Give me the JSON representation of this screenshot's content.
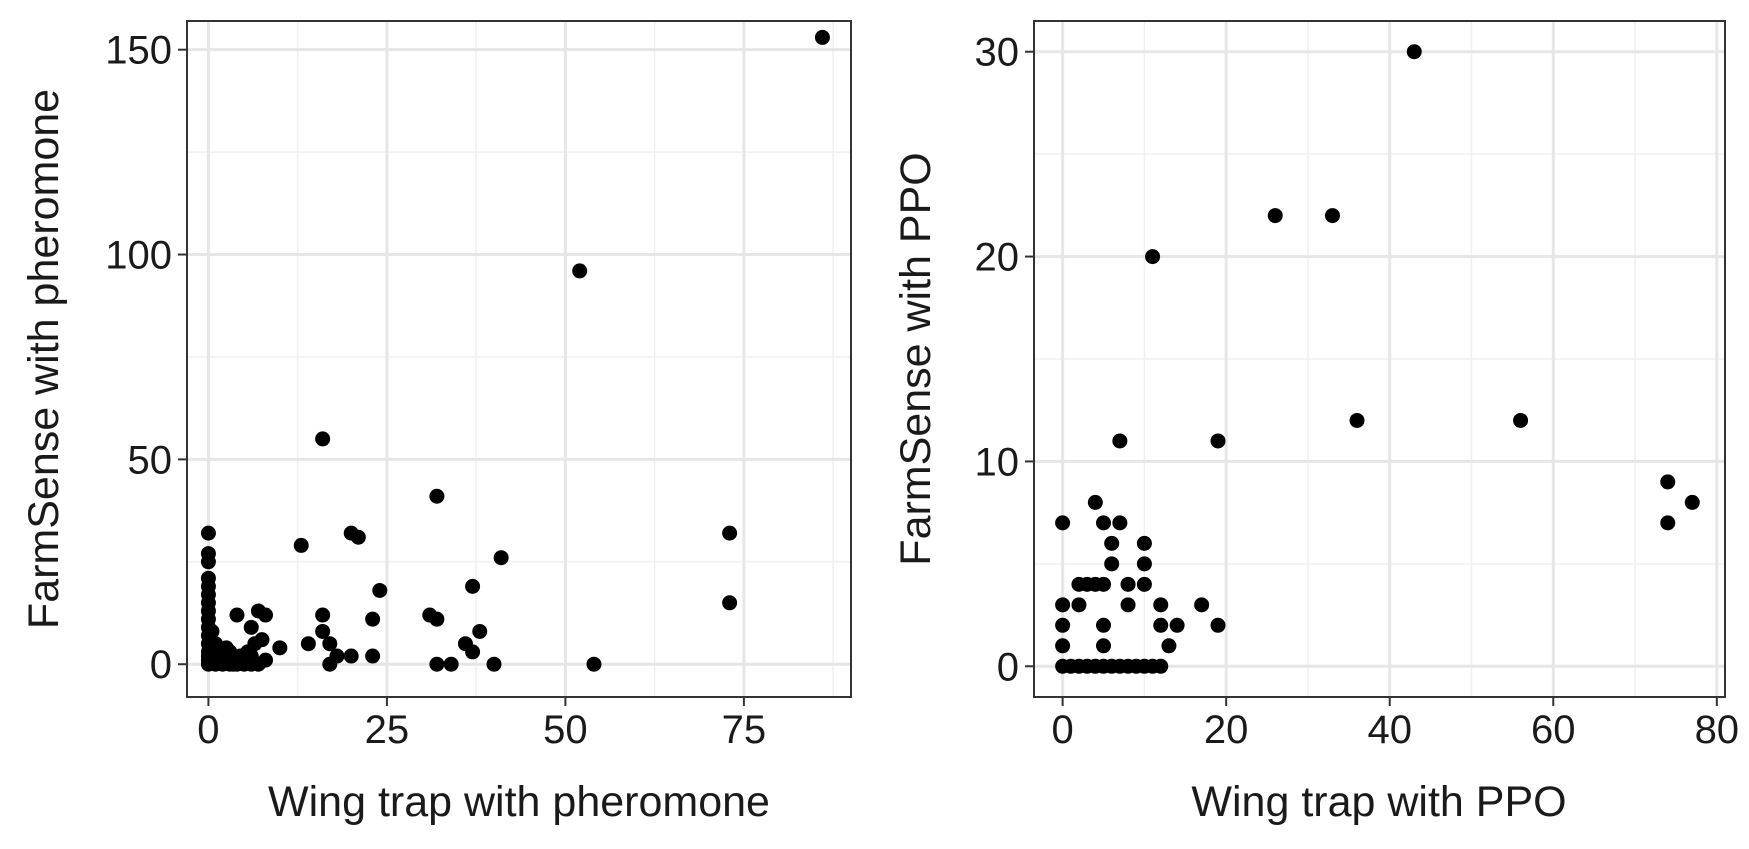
{
  "chart_data": [
    {
      "type": "scatter",
      "xlabel": "Wing trap with pheromone",
      "ylabel": "FarmSense with pheromone",
      "xlim": [
        -3,
        90
      ],
      "ylim": [
        -8,
        157
      ],
      "x_ticks": [
        "0",
        "25",
        "50",
        "75"
      ],
      "y_ticks": [
        "0",
        "50",
        "100",
        "150"
      ],
      "grid": true,
      "legend": "none",
      "point_color": "#000000",
      "points": [
        {
          "x": 0,
          "y": 0
        },
        {
          "x": 0,
          "y": 1
        },
        {
          "x": 0,
          "y": 2
        },
        {
          "x": 0,
          "y": 3
        },
        {
          "x": 0,
          "y": 5
        },
        {
          "x": 0,
          "y": 7
        },
        {
          "x": 0,
          "y": 9
        },
        {
          "x": 0,
          "y": 11
        },
        {
          "x": 0,
          "y": 13
        },
        {
          "x": 0,
          "y": 15
        },
        {
          "x": 0,
          "y": 17
        },
        {
          "x": 0,
          "y": 19
        },
        {
          "x": 0,
          "y": 21
        },
        {
          "x": 0,
          "y": 25
        },
        {
          "x": 0,
          "y": 27
        },
        {
          "x": 0,
          "y": 32
        },
        {
          "x": 0.5,
          "y": 4
        },
        {
          "x": 0.5,
          "y": 8
        },
        {
          "x": 1,
          "y": 0
        },
        {
          "x": 1,
          "y": 2
        },
        {
          "x": 1,
          "y": 5
        },
        {
          "x": 1.5,
          "y": 1
        },
        {
          "x": 1.5,
          "y": 3
        },
        {
          "x": 2,
          "y": 0
        },
        {
          "x": 2,
          "y": 2
        },
        {
          "x": 2.5,
          "y": 4
        },
        {
          "x": 3,
          "y": 0
        },
        {
          "x": 3,
          "y": 1
        },
        {
          "x": 3,
          "y": 3
        },
        {
          "x": 3.5,
          "y": 0
        },
        {
          "x": 4,
          "y": 0
        },
        {
          "x": 4,
          "y": 12
        },
        {
          "x": 4.5,
          "y": 2
        },
        {
          "x": 5,
          "y": 0
        },
        {
          "x": 5,
          "y": 1
        },
        {
          "x": 5.5,
          "y": 3
        },
        {
          "x": 6,
          "y": 0
        },
        {
          "x": 6,
          "y": 2
        },
        {
          "x": 6,
          "y": 9
        },
        {
          "x": 6.5,
          "y": 5
        },
        {
          "x": 7,
          "y": 0
        },
        {
          "x": 7,
          "y": 13
        },
        {
          "x": 7.5,
          "y": 6
        },
        {
          "x": 8,
          "y": 1
        },
        {
          "x": 8,
          "y": 12
        },
        {
          "x": 10,
          "y": 4
        },
        {
          "x": 13,
          "y": 29
        },
        {
          "x": 14,
          "y": 5
        },
        {
          "x": 16,
          "y": 55
        },
        {
          "x": 16,
          "y": 8
        },
        {
          "x": 16,
          "y": 12
        },
        {
          "x": 17,
          "y": 5
        },
        {
          "x": 17,
          "y": 0
        },
        {
          "x": 18,
          "y": 2
        },
        {
          "x": 20,
          "y": 32
        },
        {
          "x": 20,
          "y": 2
        },
        {
          "x": 21,
          "y": 31
        },
        {
          "x": 23,
          "y": 11
        },
        {
          "x": 23,
          "y": 2
        },
        {
          "x": 24,
          "y": 18
        },
        {
          "x": 31,
          "y": 12
        },
        {
          "x": 32,
          "y": 11
        },
        {
          "x": 32,
          "y": 41
        },
        {
          "x": 32,
          "y": 0
        },
        {
          "x": 34,
          "y": 0
        },
        {
          "x": 36,
          "y": 5
        },
        {
          "x": 37,
          "y": 3
        },
        {
          "x": 37,
          "y": 19
        },
        {
          "x": 38,
          "y": 8
        },
        {
          "x": 40,
          "y": 0
        },
        {
          "x": 41,
          "y": 26
        },
        {
          "x": 52,
          "y": 96
        },
        {
          "x": 54,
          "y": 0
        },
        {
          "x": 73,
          "y": 32
        },
        {
          "x": 73,
          "y": 15
        },
        {
          "x": 86,
          "y": 153
        }
      ]
    },
    {
      "type": "scatter",
      "xlabel": "Wing trap with PPO",
      "ylabel": "FarmSense with PPO",
      "xlim": [
        -3.5,
        81
      ],
      "ylim": [
        -1.5,
        31.5
      ],
      "x_ticks": [
        "0",
        "20",
        "40",
        "60",
        "80"
      ],
      "y_ticks": [
        "0",
        "10",
        "20",
        "30"
      ],
      "grid": true,
      "legend": "none",
      "point_color": "#000000",
      "points": [
        {
          "x": 0,
          "y": 0
        },
        {
          "x": 0,
          "y": 1
        },
        {
          "x": 0,
          "y": 2
        },
        {
          "x": 0,
          "y": 3
        },
        {
          "x": 0,
          "y": 7
        },
        {
          "x": 1,
          "y": 0
        },
        {
          "x": 2,
          "y": 0
        },
        {
          "x": 2,
          "y": 3
        },
        {
          "x": 2,
          "y": 4
        },
        {
          "x": 3,
          "y": 0
        },
        {
          "x": 3,
          "y": 4
        },
        {
          "x": 4,
          "y": 0
        },
        {
          "x": 4,
          "y": 4
        },
        {
          "x": 4,
          "y": 8
        },
        {
          "x": 5,
          "y": 0
        },
        {
          "x": 5,
          "y": 1
        },
        {
          "x": 5,
          "y": 2
        },
        {
          "x": 5,
          "y": 4
        },
        {
          "x": 5,
          "y": 7
        },
        {
          "x": 6,
          "y": 0
        },
        {
          "x": 6,
          "y": 5
        },
        {
          "x": 6,
          "y": 6
        },
        {
          "x": 7,
          "y": 0
        },
        {
          "x": 7,
          "y": 7
        },
        {
          "x": 7,
          "y": 11
        },
        {
          "x": 8,
          "y": 0
        },
        {
          "x": 8,
          "y": 3
        },
        {
          "x": 8,
          "y": 4
        },
        {
          "x": 9,
          "y": 0
        },
        {
          "x": 10,
          "y": 0
        },
        {
          "x": 10,
          "y": 4
        },
        {
          "x": 10,
          "y": 5
        },
        {
          "x": 10,
          "y": 6
        },
        {
          "x": 11,
          "y": 0
        },
        {
          "x": 11,
          "y": 20
        },
        {
          "x": 12,
          "y": 0
        },
        {
          "x": 12,
          "y": 2
        },
        {
          "x": 12,
          "y": 3
        },
        {
          "x": 13,
          "y": 1
        },
        {
          "x": 14,
          "y": 2
        },
        {
          "x": 17,
          "y": 3
        },
        {
          "x": 19,
          "y": 2
        },
        {
          "x": 19,
          "y": 11
        },
        {
          "x": 26,
          "y": 22
        },
        {
          "x": 33,
          "y": 22
        },
        {
          "x": 36,
          "y": 12
        },
        {
          "x": 43,
          "y": 30
        },
        {
          "x": 56,
          "y": 12
        },
        {
          "x": 74,
          "y": 9
        },
        {
          "x": 74,
          "y": 7
        },
        {
          "x": 77,
          "y": 8
        }
      ]
    }
  ]
}
